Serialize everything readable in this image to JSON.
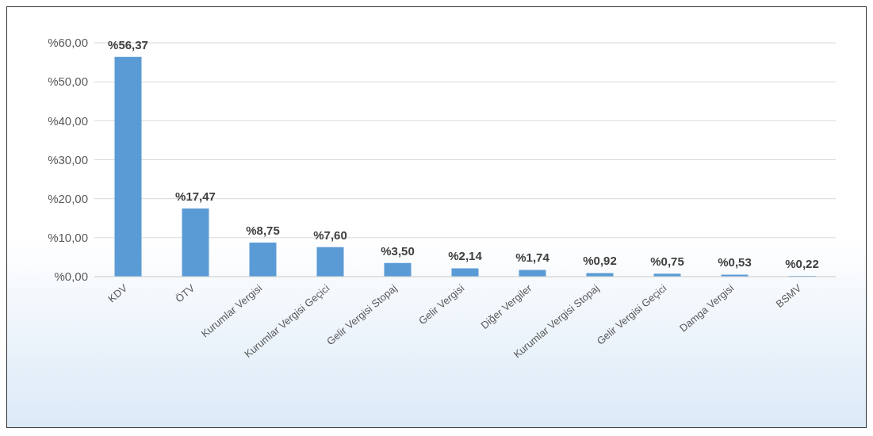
{
  "chart_data": {
    "type": "bar",
    "categories": [
      "KDV",
      "ÖTV",
      "Kurumlar Vergisi",
      "Kurumlar Vergisi Geçici",
      "Gelir Vergisi Stopaj",
      "Gelir Vergisi",
      "Diğer Vergiler",
      "Kurumlar Vergisi Stopaj",
      "Gelir Vergisi Geçici",
      "Damga Vergisi",
      "BSMV"
    ],
    "values": [
      56.37,
      17.47,
      8.75,
      7.6,
      3.5,
      2.14,
      1.74,
      0.92,
      0.75,
      0.53,
      0.22
    ],
    "value_labels": [
      "%56,37",
      "%17,47",
      "%8,75",
      "%7,60",
      "%3,50",
      "%2,14",
      "%1,74",
      "%0,92",
      "%0,75",
      "%0,53",
      "%0,22"
    ],
    "color": "#5b9bd5",
    "ylim": [
      0,
      60
    ],
    "yticks": [
      {
        "value": 0,
        "label": "%0,00"
      },
      {
        "value": 10,
        "label": "%10,00"
      },
      {
        "value": 20,
        "label": "%20,00"
      },
      {
        "value": 30,
        "label": "%30,00"
      },
      {
        "value": 40,
        "label": "%40,00"
      },
      {
        "value": 50,
        "label": "%50,00"
      },
      {
        "value": 60,
        "label": "%60,00"
      }
    ],
    "grid": "y"
  }
}
